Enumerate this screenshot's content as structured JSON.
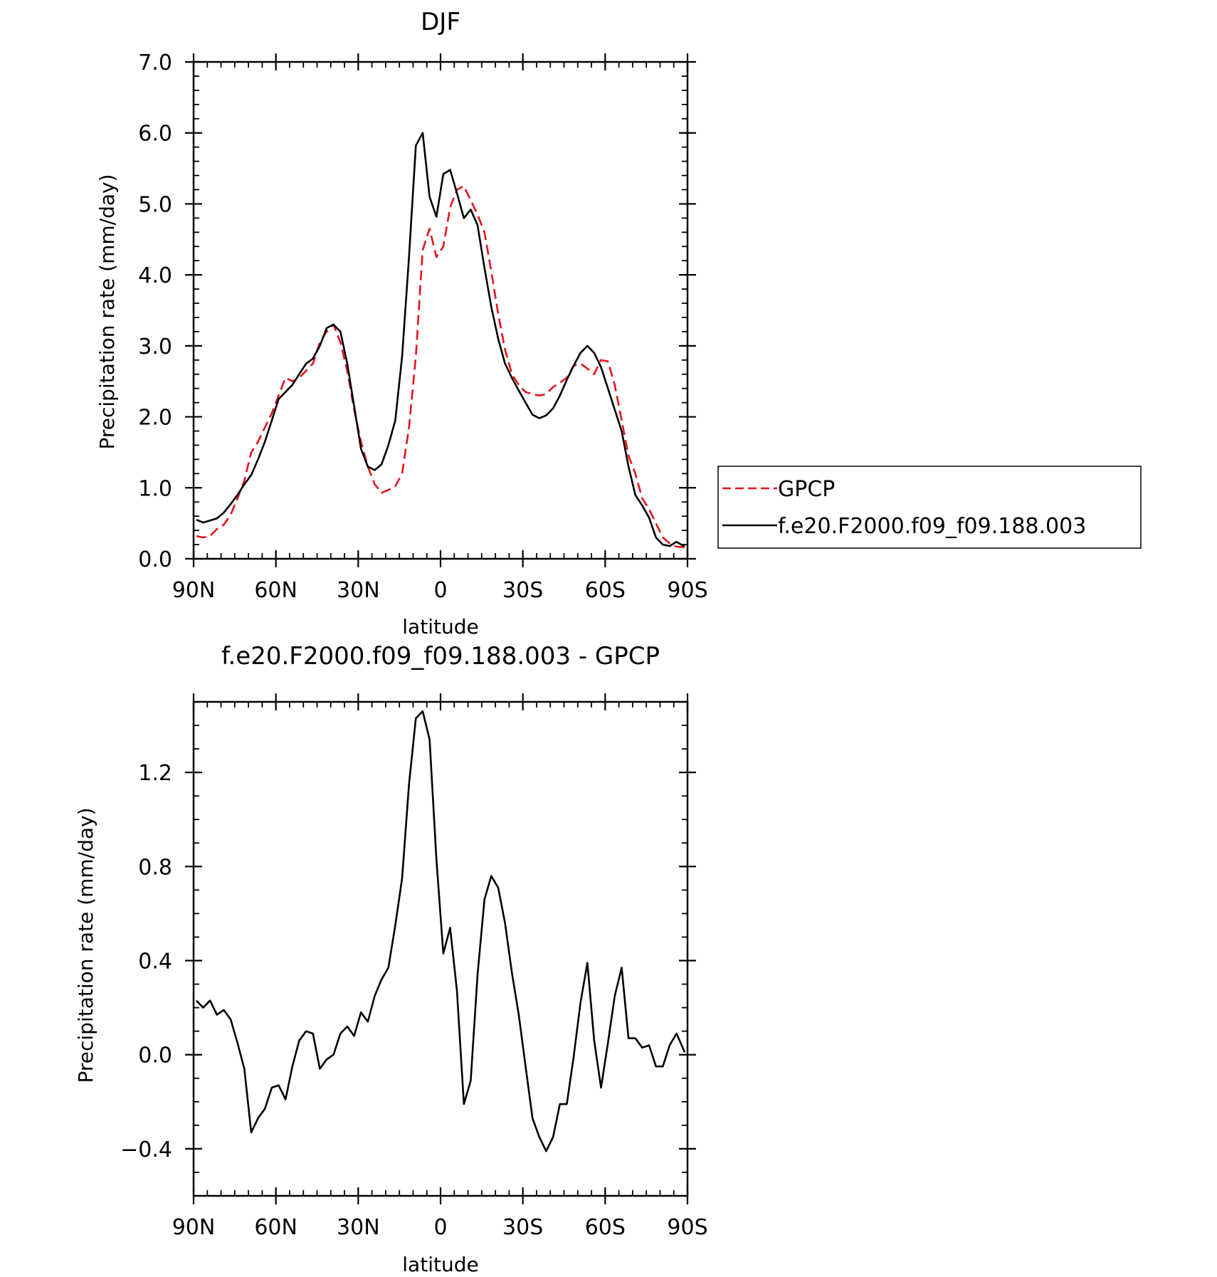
{
  "chart_data": [
    {
      "type": "line",
      "title": "DJF",
      "xlabel": "latitude",
      "ylabel": "Precipitation rate (mm/day)",
      "xlim": [
        90,
        -90
      ],
      "ylim": [
        0,
        7
      ],
      "x_ticks": [
        90,
        60,
        30,
        0,
        -30,
        -60,
        -90
      ],
      "x_tick_labels": [
        "90N",
        "60N",
        "30N",
        "0",
        "30S",
        "60S",
        "90S"
      ],
      "y_ticks": [
        0,
        1,
        2,
        3,
        4,
        5,
        6,
        7
      ],
      "y_tick_labels": [
        "0.0",
        "1.0",
        "2.0",
        "3.0",
        "4.0",
        "5.0",
        "6.0",
        "7.0"
      ],
      "legend_position": "right",
      "series": [
        {
          "name": "GPCP",
          "color": "#e8121b",
          "style": "dashed",
          "x": [
            89,
            86.5,
            84,
            81.5,
            79,
            76.5,
            74,
            71.5,
            69,
            66.5,
            64,
            61.5,
            59,
            56.5,
            54,
            51.5,
            49,
            46.5,
            44,
            41.5,
            39,
            36.5,
            34,
            31.5,
            29,
            26.5,
            24,
            21.5,
            19,
            16.5,
            14,
            11.5,
            9,
            6.5,
            4,
            1.5,
            -1,
            -3.5,
            -6,
            -8.5,
            -11,
            -13.5,
            -16,
            -18.5,
            -21,
            -23.5,
            -26,
            -28.5,
            -31,
            -33.5,
            -36,
            -38.5,
            -41,
            -43.5,
            -46,
            -48.5,
            -51,
            -53.5,
            -56,
            -58.5,
            -61,
            -63.5,
            -66,
            -68.5,
            -71,
            -73.5,
            -76,
            -78.5,
            -81,
            -83.5,
            -86,
            -89
          ],
          "y": [
            0.32,
            0.3,
            0.32,
            0.42,
            0.48,
            0.62,
            0.85,
            1.1,
            1.5,
            1.65,
            1.85,
            2.05,
            2.3,
            2.55,
            2.5,
            2.55,
            2.65,
            2.75,
            3.05,
            3.2,
            3.3,
            3.05,
            2.65,
            2.1,
            1.65,
            1.3,
            1.05,
            0.93,
            0.97,
            1.02,
            1.2,
            1.85,
            2.85,
            4.35,
            4.65,
            4.25,
            4.4,
            4.95,
            5.2,
            5.25,
            5.05,
            4.85,
            4.6,
            4.05,
            3.45,
            2.95,
            2.6,
            2.45,
            2.35,
            2.32,
            2.3,
            2.32,
            2.42,
            2.48,
            2.55,
            2.72,
            2.75,
            2.68,
            2.6,
            2.8,
            2.78,
            2.45,
            1.95,
            1.45,
            1.2,
            0.85,
            0.7,
            0.5,
            0.3,
            0.22,
            0.17,
            0.16
          ]
        },
        {
          "name": "f.e20.F2000.f09_f09.188.003",
          "color": "#000000",
          "style": "solid",
          "x": [
            89,
            86.5,
            84,
            81.5,
            79,
            76.5,
            74,
            71.5,
            69,
            66.5,
            64,
            61.5,
            59,
            56.5,
            54,
            51.5,
            49,
            46.5,
            44,
            41.5,
            39,
            36.5,
            34,
            31.5,
            29,
            26.5,
            24,
            21.5,
            19,
            16.5,
            14,
            11.5,
            9,
            6.5,
            4,
            1.5,
            -1,
            -3.5,
            -6,
            -8.5,
            -11,
            -13.5,
            -16,
            -18.5,
            -21,
            -23.5,
            -26,
            -28.5,
            -31,
            -33.5,
            -36,
            -38.5,
            -41,
            -43.5,
            -46,
            -48.5,
            -51,
            -53.5,
            -56,
            -58.5,
            -61,
            -63.5,
            -66,
            -68.5,
            -71,
            -73.5,
            -76,
            -78.5,
            -81,
            -83.5,
            -86,
            -89
          ],
          "y": [
            0.55,
            0.51,
            0.54,
            0.57,
            0.65,
            0.77,
            0.9,
            1.05,
            1.18,
            1.4,
            1.65,
            1.95,
            2.25,
            2.35,
            2.45,
            2.6,
            2.75,
            2.82,
            3.0,
            3.25,
            3.3,
            3.2,
            2.75,
            2.15,
            1.55,
            1.3,
            1.25,
            1.33,
            1.6,
            1.95,
            2.85,
            4.25,
            5.82,
            6.0,
            5.1,
            4.82,
            5.42,
            5.48,
            5.15,
            4.8,
            4.92,
            4.7,
            4.1,
            3.55,
            3.1,
            2.75,
            2.55,
            2.37,
            2.2,
            2.03,
            1.98,
            2.02,
            2.12,
            2.3,
            2.52,
            2.72,
            2.9,
            3.0,
            2.9,
            2.7,
            2.4,
            2.1,
            1.8,
            1.3,
            0.9,
            0.75,
            0.58,
            0.3,
            0.2,
            0.18,
            0.24,
            0.17
          ]
        }
      ]
    },
    {
      "type": "line",
      "title": "f.e20.F2000.f09_f09.188.003 - GPCP",
      "xlabel": "latitude",
      "ylabel": "Precipitation rate (mm/day)",
      "xlim": [
        90,
        -90
      ],
      "ylim": [
        -0.6,
        1.5
      ],
      "x_ticks": [
        90,
        60,
        30,
        0,
        -30,
        -60,
        -90
      ],
      "x_tick_labels": [
        "90N",
        "60N",
        "30N",
        "0",
        "30S",
        "60S",
        "90S"
      ],
      "y_ticks": [
        -0.4,
        0,
        0.4,
        0.8,
        1.2
      ],
      "y_tick_labels": [
        "−0.4",
        "0.0",
        "0.4",
        "0.8",
        "1.2"
      ],
      "series": [
        {
          "color": "#000000",
          "style": "solid",
          "x": [
            89,
            86.5,
            84,
            81.5,
            79,
            76.5,
            74,
            71.5,
            69,
            66.5,
            64,
            61.5,
            59,
            56.5,
            54,
            51.5,
            49,
            46.5,
            44,
            41.5,
            39,
            36.5,
            34,
            31.5,
            29,
            26.5,
            24,
            21.5,
            19,
            16.5,
            14,
            11.5,
            9,
            6.5,
            4,
            1.5,
            -1,
            -3.5,
            -6,
            -8.5,
            -11,
            -13.5,
            -16,
            -18.5,
            -21,
            -23.5,
            -26,
            -28.5,
            -31,
            -33.5,
            -36,
            -38.5,
            -41,
            -43.5,
            -46,
            -48.5,
            -51,
            -53.5,
            -56,
            -58.5,
            -61,
            -63.5,
            -66,
            -68.5,
            -71,
            -73.5,
            -76,
            -78.5,
            -81,
            -83.5,
            -86,
            -89
          ],
          "y": [
            0.23,
            0.2,
            0.23,
            0.17,
            0.19,
            0.15,
            0.05,
            -0.06,
            -0.33,
            -0.27,
            -0.23,
            -0.14,
            -0.13,
            -0.19,
            -0.05,
            0.06,
            0.1,
            0.09,
            -0.06,
            -0.02,
            0.0,
            0.09,
            0.12,
            0.08,
            0.18,
            0.14,
            0.25,
            0.32,
            0.37,
            0.55,
            0.75,
            1.15,
            1.43,
            1.46,
            1.34,
            0.83,
            0.43,
            0.54,
            0.27,
            -0.21,
            -0.11,
            0.34,
            0.66,
            0.76,
            0.71,
            0.56,
            0.35,
            0.17,
            -0.05,
            -0.27,
            -0.35,
            -0.41,
            -0.35,
            -0.21,
            -0.21,
            -0.01,
            0.22,
            0.39,
            0.06,
            -0.14,
            0.05,
            0.25,
            0.37,
            0.07,
            0.07,
            0.03,
            0.04,
            -0.05,
            -0.05,
            0.04,
            0.09,
            0.01
          ]
        }
      ]
    }
  ]
}
